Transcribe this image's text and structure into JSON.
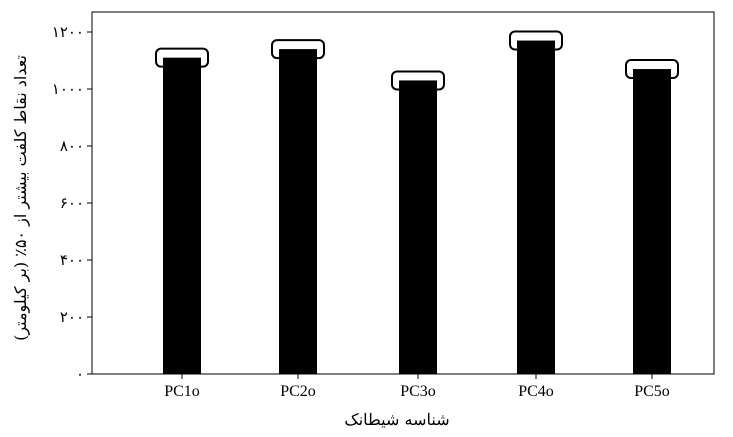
{
  "chart_data": {
    "type": "bar",
    "title": "",
    "xlabel": "شناسه شیطانک",
    "ylabel": "تعداد نقاط کلفت بیشتر از ۵۰٪ (بر کیلومتر)",
    "categories": [
      "PC1o",
      "PC2o",
      "PC3o",
      "PC4o",
      "PC5o"
    ],
    "values": [
      1110,
      1140,
      1030,
      1170,
      1070
    ],
    "error_markers": [
      1110,
      1140,
      1030,
      1170,
      1070
    ],
    "ylim": [
      0,
      1200
    ],
    "yticks": [
      0,
      200,
      400,
      600,
      800,
      1000,
      1200
    ],
    "ytick_labels": [
      "۰",
      "۲۰۰",
      "۴۰۰",
      "۶۰۰",
      "۸۰۰",
      "۱۰۰۰",
      "۱۲۰۰"
    ],
    "grid": false,
    "legend": "none",
    "bar_color": "#000000",
    "marker_color": "#000000"
  }
}
